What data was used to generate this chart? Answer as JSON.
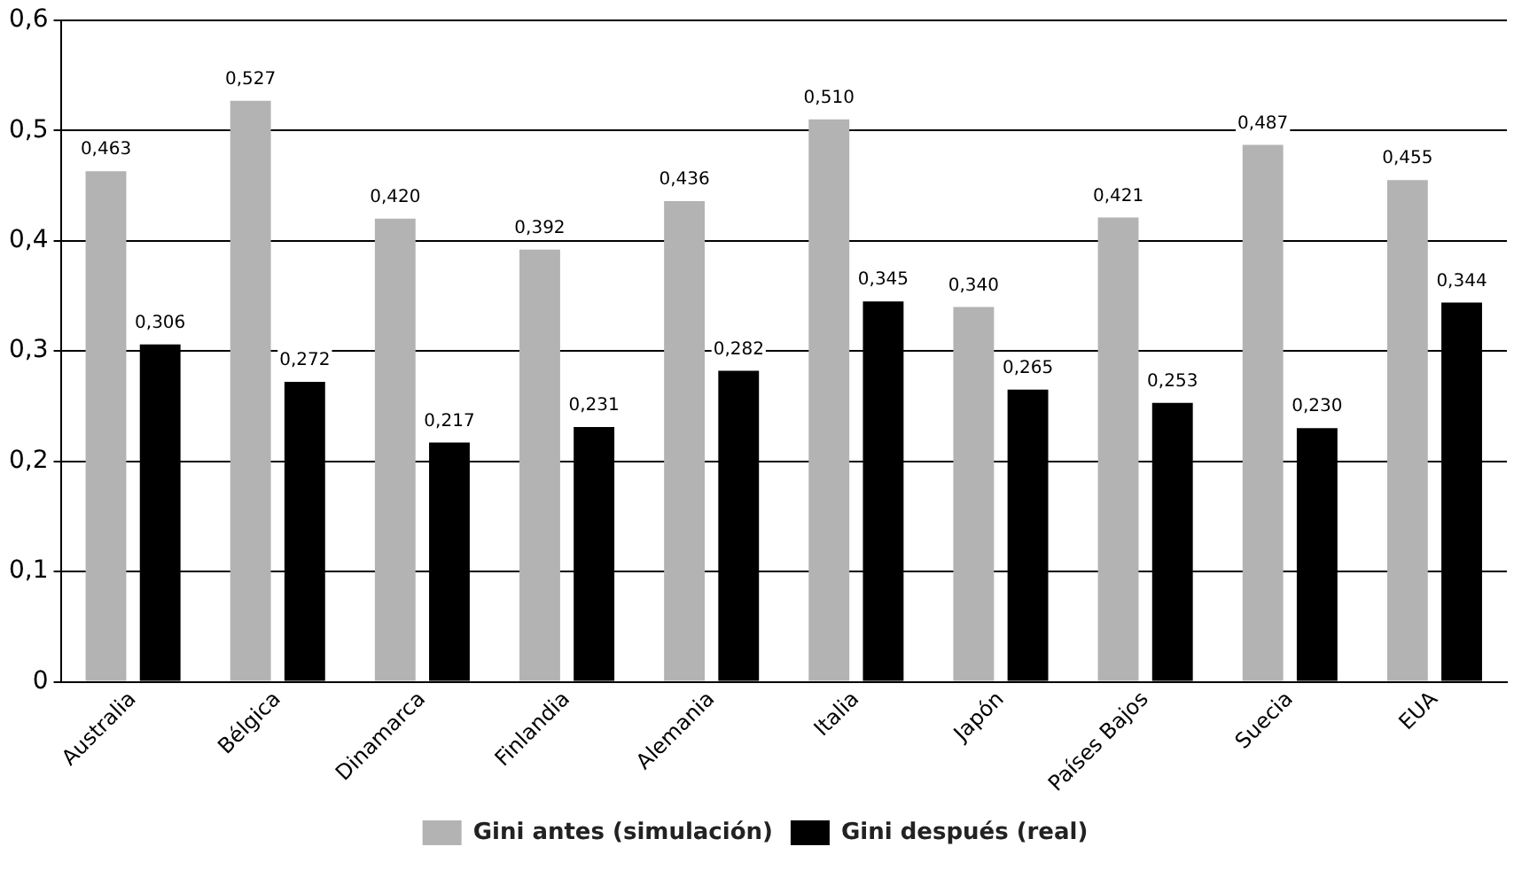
{
  "chart_data": {
    "type": "bar",
    "categories": [
      "Australia",
      "Bélgica",
      "Dinamarca",
      "Finlandia",
      "Alemania",
      "Italia",
      "Japón",
      "Países Bajos",
      "Suecia",
      "EUA"
    ],
    "series": [
      {
        "name": "Gini antes (simulación)",
        "color": "#b3b3b3",
        "values": [
          0.463,
          0.527,
          0.42,
          0.392,
          0.436,
          0.51,
          0.34,
          0.421,
          0.487,
          0.455
        ],
        "value_labels": [
          "0,463",
          "0,527",
          "0,420",
          "0,392",
          "0,436",
          "0,510",
          "0,340",
          "0,421",
          "0,487",
          "0,455"
        ]
      },
      {
        "name": "Gini después (real)",
        "color": "#000000",
        "values": [
          0.306,
          0.272,
          0.217,
          0.231,
          0.282,
          0.345,
          0.265,
          0.253,
          0.23,
          0.344
        ],
        "value_labels": [
          "0,306",
          "0,272",
          "0,217",
          "0,231",
          "0,282",
          "0,345",
          "0,265",
          "0,253",
          "0,230",
          "0,344"
        ]
      }
    ],
    "ylim": [
      0,
      0.6
    ],
    "yticks": [
      {
        "value": 0,
        "label": "0"
      },
      {
        "value": 0.1,
        "label": "0,1"
      },
      {
        "value": 0.2,
        "label": "0,2"
      },
      {
        "value": 0.3,
        "label": "0,3"
      },
      {
        "value": 0.4,
        "label": "0,4"
      },
      {
        "value": 0.5,
        "label": "0,5"
      },
      {
        "value": 0.6,
        "label": "0,6"
      }
    ],
    "grid": "y",
    "legend": "bottom"
  }
}
